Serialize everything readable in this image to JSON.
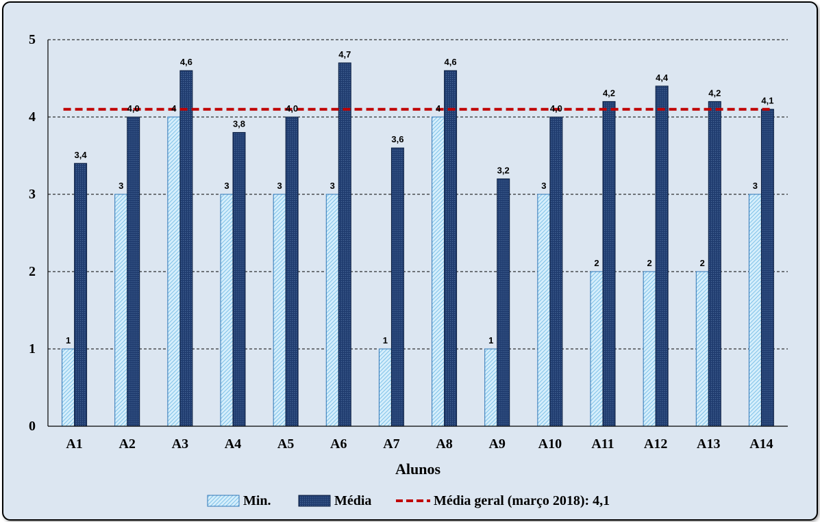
{
  "chart_data": {
    "type": "bar",
    "title": "",
    "xlabel": "Alunos",
    "ylabel": "",
    "ylim": [
      0,
      5
    ],
    "yticks": [
      "0",
      "1",
      "2",
      "3",
      "4",
      "5"
    ],
    "grid": true,
    "legend_position": "bottom",
    "categories": [
      "A1",
      "A2",
      "A3",
      "A4",
      "A5",
      "A6",
      "A7",
      "A8",
      "A9",
      "A10",
      "A11",
      "A12",
      "A13",
      "A14"
    ],
    "series": [
      {
        "name": "Min.",
        "values": [
          1,
          3,
          4,
          3,
          3,
          3,
          1,
          4,
          1,
          3,
          2,
          2,
          2,
          3
        ],
        "labels": [
          "1",
          "3",
          "4",
          "3",
          "3",
          "3",
          "1",
          "4",
          "1",
          "3",
          "2",
          "2",
          "2",
          "3"
        ],
        "color": "#bfe3f7",
        "edge": "#2e75b6"
      },
      {
        "name": "Média",
        "values": [
          3.4,
          4.0,
          4.6,
          3.8,
          4.0,
          4.7,
          3.6,
          4.6,
          3.2,
          4.0,
          4.2,
          4.4,
          4.2,
          4.1
        ],
        "labels": [
          "3,4",
          "4,0",
          "4,6",
          "3,8",
          "4,0",
          "4,7",
          "3,6",
          "4,6",
          "3,2",
          "4,0",
          "4,2",
          "4,4",
          "4,2",
          "4,1"
        ],
        "color": "#1f3b6e",
        "edge": "#0b1e40"
      }
    ],
    "reference_line": {
      "name": "Média geral (março 2018): 4,1",
      "value": 4.1,
      "color": "#c00000"
    }
  }
}
